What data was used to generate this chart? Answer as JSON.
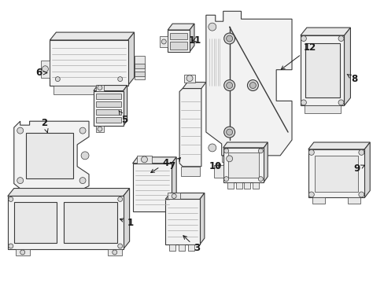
{
  "background_color": "#ffffff",
  "line_color": "#3a3a3a",
  "label_color": "#1a1a1a",
  "fig_width": 4.89,
  "fig_height": 3.6,
  "dpi": 100,
  "lw_thin": 0.5,
  "lw_med": 0.8,
  "lw_thick": 1.0,
  "fill_main": "#f2f2f2",
  "fill_dark": "#d8d8d8",
  "fill_mid": "#e8e8e8"
}
